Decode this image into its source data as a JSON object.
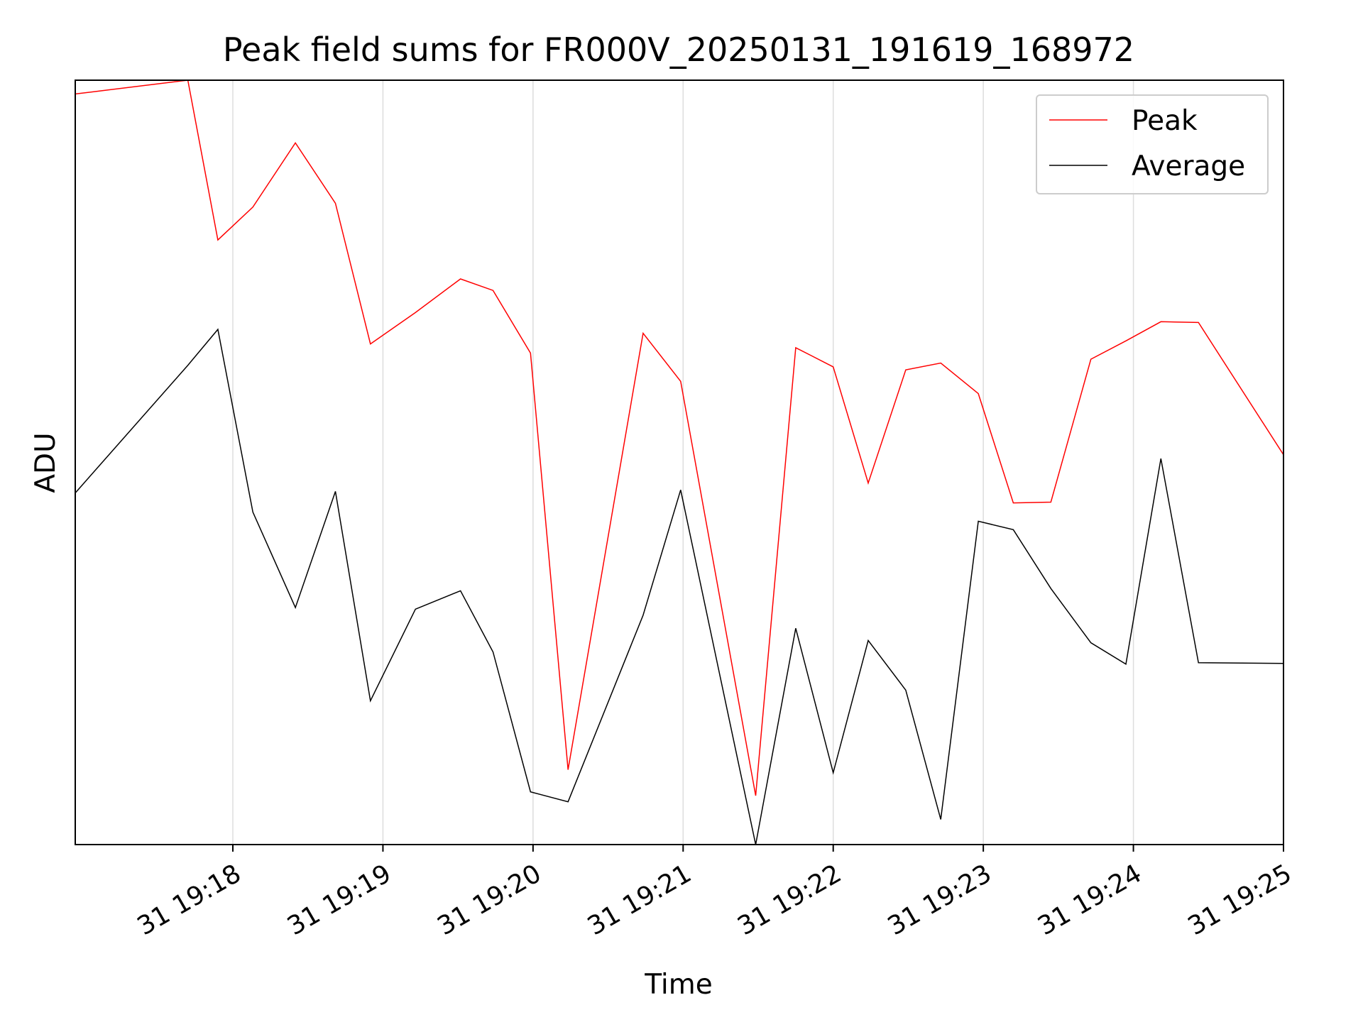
{
  "chart_data": {
    "type": "line",
    "title": "Peak field sums for FR000V_20250131_191619_168972",
    "xlabel": "Time",
    "ylabel": "ADU",
    "x_unit": "seconds after 19:16:00 on day 31 (axis prints HH:MM)",
    "xlim": [
      57,
      540
    ],
    "x_ticks": [
      {
        "value": 120,
        "label": "31 19:18"
      },
      {
        "value": 180,
        "label": "31 19:19"
      },
      {
        "value": 240,
        "label": "31 19:20"
      },
      {
        "value": 300,
        "label": "31 19:21"
      },
      {
        "value": 360,
        "label": "31 19:22"
      },
      {
        "value": 420,
        "label": "31 19:23"
      },
      {
        "value": 480,
        "label": "31 19:24"
      },
      {
        "value": 540,
        "label": "31 19:25"
      }
    ],
    "y_ticks_shown": false,
    "ylim": [
      0,
      100
    ],
    "grid": "vertical",
    "legend": "top-right",
    "series": [
      {
        "name": "Peak",
        "color": "#ff0000",
        "x": [
          57,
          102,
          114,
          128,
          145,
          161,
          175,
          193,
          211,
          224,
          239,
          254,
          284,
          299,
          329,
          345,
          360,
          374,
          389,
          403,
          418,
          432,
          447,
          463,
          477,
          491,
          506,
          540
        ],
        "y": [
          98.2,
          100,
          79.1,
          83.4,
          91.8,
          83.9,
          65.5,
          69.6,
          74.0,
          72.5,
          64.3,
          9.8,
          66.9,
          60.6,
          6.4,
          65.0,
          62.5,
          47.3,
          62.1,
          63.0,
          59.0,
          44.7,
          44.8,
          63.5,
          65.9,
          68.4,
          68.3,
          51.0
        ]
      },
      {
        "name": "Average",
        "color": "#000000",
        "x": [
          57,
          102,
          114,
          128,
          145,
          161,
          175,
          193,
          211,
          224,
          239,
          254,
          284,
          299,
          329,
          345,
          360,
          374,
          389,
          403,
          418,
          432,
          447,
          463,
          477,
          491,
          506,
          540
        ],
        "y": [
          46.0,
          62.7,
          67.4,
          43.5,
          31.0,
          46.2,
          18.8,
          30.8,
          33.2,
          25.2,
          6.9,
          5.6,
          30.0,
          46.4,
          0,
          28.3,
          9.4,
          26.7,
          20.2,
          3.3,
          42.3,
          41.2,
          33.5,
          26.4,
          23.6,
          50.5,
          23.8,
          23.7
        ]
      }
    ]
  }
}
